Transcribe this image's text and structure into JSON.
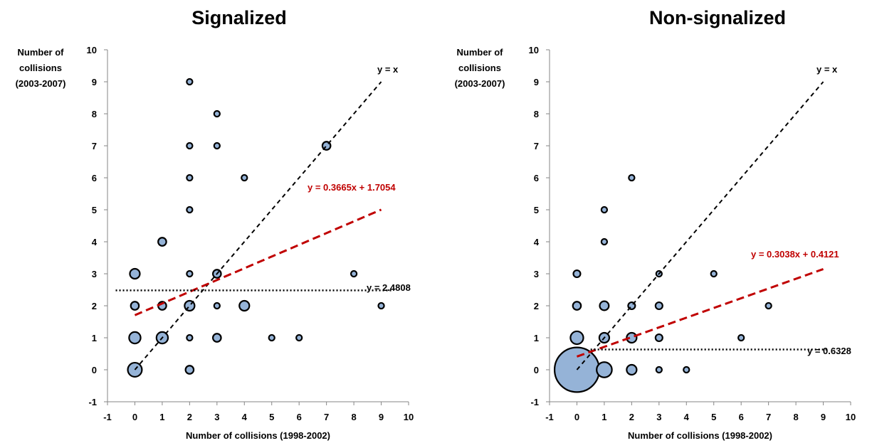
{
  "chart_data": [
    {
      "type": "scatter",
      "subtype": "bubble",
      "title": "Signalized",
      "xlabel": "Number of collisions (1998-2002)",
      "ylabel_lines": [
        "Number of",
        "collisions",
        "(2003-2007)"
      ],
      "xlim": [
        -1,
        10
      ],
      "ylim": [
        -1,
        10
      ],
      "xticks": [
        "-1",
        "0",
        "1",
        "2",
        "3",
        "4",
        "5",
        "6",
        "7",
        "8",
        "9",
        "10"
      ],
      "yticks": [
        "-1",
        "0",
        "1",
        "2",
        "3",
        "4",
        "5",
        "6",
        "7",
        "8",
        "9",
        "10"
      ],
      "grid": false,
      "points": [
        {
          "x": 0,
          "y": 0,
          "count": 6
        },
        {
          "x": 0,
          "y": 1,
          "count": 4
        },
        {
          "x": 0,
          "y": 2,
          "count": 2
        },
        {
          "x": 0,
          "y": 3,
          "count": 3
        },
        {
          "x": 1,
          "y": 1,
          "count": 4
        },
        {
          "x": 1,
          "y": 2,
          "count": 2
        },
        {
          "x": 1,
          "y": 4,
          "count": 2
        },
        {
          "x": 2,
          "y": 0,
          "count": 2
        },
        {
          "x": 2,
          "y": 1,
          "count": 1
        },
        {
          "x": 2,
          "y": 2,
          "count": 3
        },
        {
          "x": 2,
          "y": 3,
          "count": 1
        },
        {
          "x": 2,
          "y": 5,
          "count": 1
        },
        {
          "x": 2,
          "y": 6,
          "count": 1
        },
        {
          "x": 2,
          "y": 7,
          "count": 1
        },
        {
          "x": 2,
          "y": 9,
          "count": 1
        },
        {
          "x": 3,
          "y": 1,
          "count": 2
        },
        {
          "x": 3,
          "y": 2,
          "count": 1
        },
        {
          "x": 3,
          "y": 3,
          "count": 2
        },
        {
          "x": 3,
          "y": 7,
          "count": 1
        },
        {
          "x": 3,
          "y": 8,
          "count": 1
        },
        {
          "x": 4,
          "y": 2,
          "count": 3
        },
        {
          "x": 4,
          "y": 6,
          "count": 1
        },
        {
          "x": 5,
          "y": 1,
          "count": 1
        },
        {
          "x": 6,
          "y": 1,
          "count": 1
        },
        {
          "x": 7,
          "y": 7,
          "count": 2
        },
        {
          "x": 8,
          "y": 3,
          "count": 1
        },
        {
          "x": 9,
          "y": 2,
          "count": 1
        }
      ],
      "lines": [
        {
          "label": "y = x",
          "style": "identity",
          "x0": 0,
          "x1": 9,
          "slope": 1,
          "intercept": 0,
          "color": "#000000"
        },
        {
          "label": "y = 0.3665x + 1.7054",
          "style": "regression",
          "x0": 0,
          "x1": 9,
          "slope": 0.3665,
          "intercept": 1.7054,
          "color": "#c00000"
        },
        {
          "label": "y = 2.4808",
          "style": "mean",
          "x0": -0.7,
          "x1": 9.4,
          "slope": 0,
          "intercept": 2.4808,
          "color": "#000000"
        }
      ]
    },
    {
      "type": "scatter",
      "subtype": "bubble",
      "title": "Non-signalized",
      "xlabel": "Number of collisions (1998-2002)",
      "ylabel_lines": [
        "Number of",
        "collisions",
        "(2003-2007)"
      ],
      "xlim": [
        -1,
        10
      ],
      "ylim": [
        -1,
        10
      ],
      "xticks": [
        "-1",
        "0",
        "1",
        "2",
        "3",
        "4",
        "5",
        "6",
        "7",
        "8",
        "9",
        "10"
      ],
      "yticks": [
        "-1",
        "0",
        "1",
        "2",
        "3",
        "4",
        "5",
        "6",
        "7",
        "8",
        "9",
        "10"
      ],
      "grid": false,
      "points": [
        {
          "x": 0,
          "y": 0,
          "count": 60
        },
        {
          "x": 0,
          "y": 1,
          "count": 5
        },
        {
          "x": 0,
          "y": 2,
          "count": 2
        },
        {
          "x": 0,
          "y": 3,
          "count": 1.5
        },
        {
          "x": 1,
          "y": 0,
          "count": 7
        },
        {
          "x": 1,
          "y": 1,
          "count": 3
        },
        {
          "x": 1,
          "y": 2,
          "count": 2.5
        },
        {
          "x": 1,
          "y": 4,
          "count": 1
        },
        {
          "x": 1,
          "y": 5,
          "count": 1
        },
        {
          "x": 2,
          "y": 0,
          "count": 3
        },
        {
          "x": 2,
          "y": 1,
          "count": 3
        },
        {
          "x": 2,
          "y": 2,
          "count": 1.5
        },
        {
          "x": 2,
          "y": 6,
          "count": 1
        },
        {
          "x": 3,
          "y": 0,
          "count": 1
        },
        {
          "x": 3,
          "y": 1,
          "count": 1.5
        },
        {
          "x": 3,
          "y": 2,
          "count": 1.5
        },
        {
          "x": 3,
          "y": 3,
          "count": 1
        },
        {
          "x": 4,
          "y": 0,
          "count": 1
        },
        {
          "x": 5,
          "y": 3,
          "count": 1
        },
        {
          "x": 6,
          "y": 1,
          "count": 1
        },
        {
          "x": 7,
          "y": 2,
          "count": 1
        }
      ],
      "lines": [
        {
          "label": "y = x",
          "style": "identity",
          "x0": 0,
          "x1": 9,
          "slope": 1,
          "intercept": 0,
          "color": "#000000"
        },
        {
          "label": "y = 0.3038x + 0.4121",
          "style": "regression",
          "x0": 0,
          "x1": 9,
          "slope": 0.3038,
          "intercept": 0.4121,
          "color": "#c00000"
        },
        {
          "label": "y = 0.6328",
          "style": "mean",
          "x0": 0.5,
          "x1": 9.2,
          "slope": 0,
          "intercept": 0.6328,
          "color": "#000000"
        }
      ]
    }
  ],
  "colors": {
    "bubble_fill": "#95b3d7",
    "bubble_stroke": "#000000",
    "regression": "#c00000",
    "reference": "#000000"
  }
}
